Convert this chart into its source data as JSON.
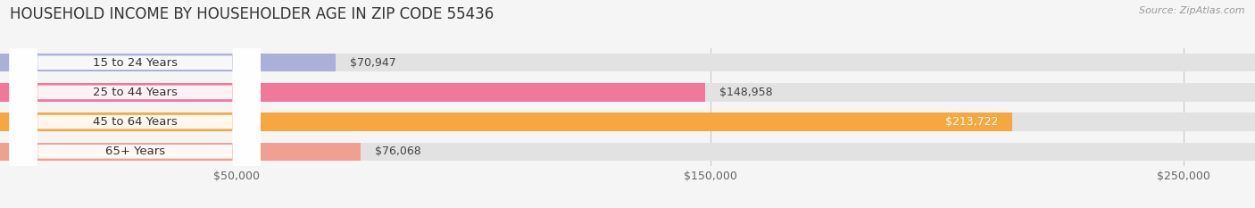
{
  "title": "HOUSEHOLD INCOME BY HOUSEHOLDER AGE IN ZIP CODE 55436",
  "source": "Source: ZipAtlas.com",
  "categories": [
    "15 to 24 Years",
    "25 to 44 Years",
    "45 to 64 Years",
    "65+ Years"
  ],
  "values": [
    70947,
    148958,
    213722,
    76068
  ],
  "bar_colors": [
    "#aab0d8",
    "#f07898",
    "#f5a840",
    "#f0a090"
  ],
  "value_labels": [
    "$70,947",
    "$148,958",
    "$213,722",
    "$76,068"
  ],
  "xlim_data": [
    0,
    265000
  ],
  "xticks": [
    50000,
    150000,
    250000
  ],
  "xtick_labels": [
    "$50,000",
    "$150,000",
    "$250,000"
  ],
  "background_color": "#f5f5f5",
  "bar_bg_color": "#e2e2e2",
  "title_fontsize": 12,
  "source_fontsize": 8,
  "label_fontsize": 9.5,
  "value_fontsize": 9,
  "tick_fontsize": 9
}
